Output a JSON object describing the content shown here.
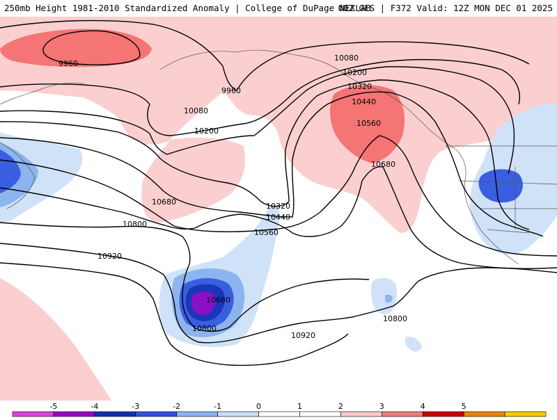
{
  "header": {
    "title_left": "250mb Height 1981-2010 Standardized Anomaly | College of DuPage NEXLAB",
    "title_right": "00Z GFS | F372 Valid: 12Z MON DEC 01 2025"
  },
  "contour_labels": {
    "c1": "9960",
    "c2": "9960",
    "c3": "10080",
    "c4": "10200",
    "c5": "10320",
    "c6": "10440",
    "c7": "10560",
    "c8": "10680",
    "c9": "10080",
    "c10": "10200",
    "c11": "10680",
    "c12": "10800",
    "c13": "10320",
    "c14": "10440",
    "c15": "10560",
    "c16": "10920",
    "c17": "10680",
    "c18": "10800",
    "c19": "10920",
    "c20": "10800"
  },
  "colorbar": {
    "ticks": [
      "-5",
      "-4",
      "-3",
      "-2",
      "-1",
      "0",
      "1",
      "2",
      "3",
      "4",
      "5"
    ],
    "colors": [
      "#e040e0",
      "#9a00c8",
      "#1030b0",
      "#3050e0",
      "#8ab4f0",
      "#c8dcf8",
      "#ffffff",
      "#ffffff",
      "#f8c8c8",
      "#f47878",
      "#c80000",
      "#f08000",
      "#f8c800"
    ]
  },
  "legend_colors": {
    "neg1": "#cfe2f8",
    "neg2": "#8cb4ee",
    "neg3": "#3a5ee0",
    "neg4": "#1a36b8",
    "neg5": "#8a10c8",
    "pos1": "#fbcfcf",
    "pos2": "#f57474"
  }
}
